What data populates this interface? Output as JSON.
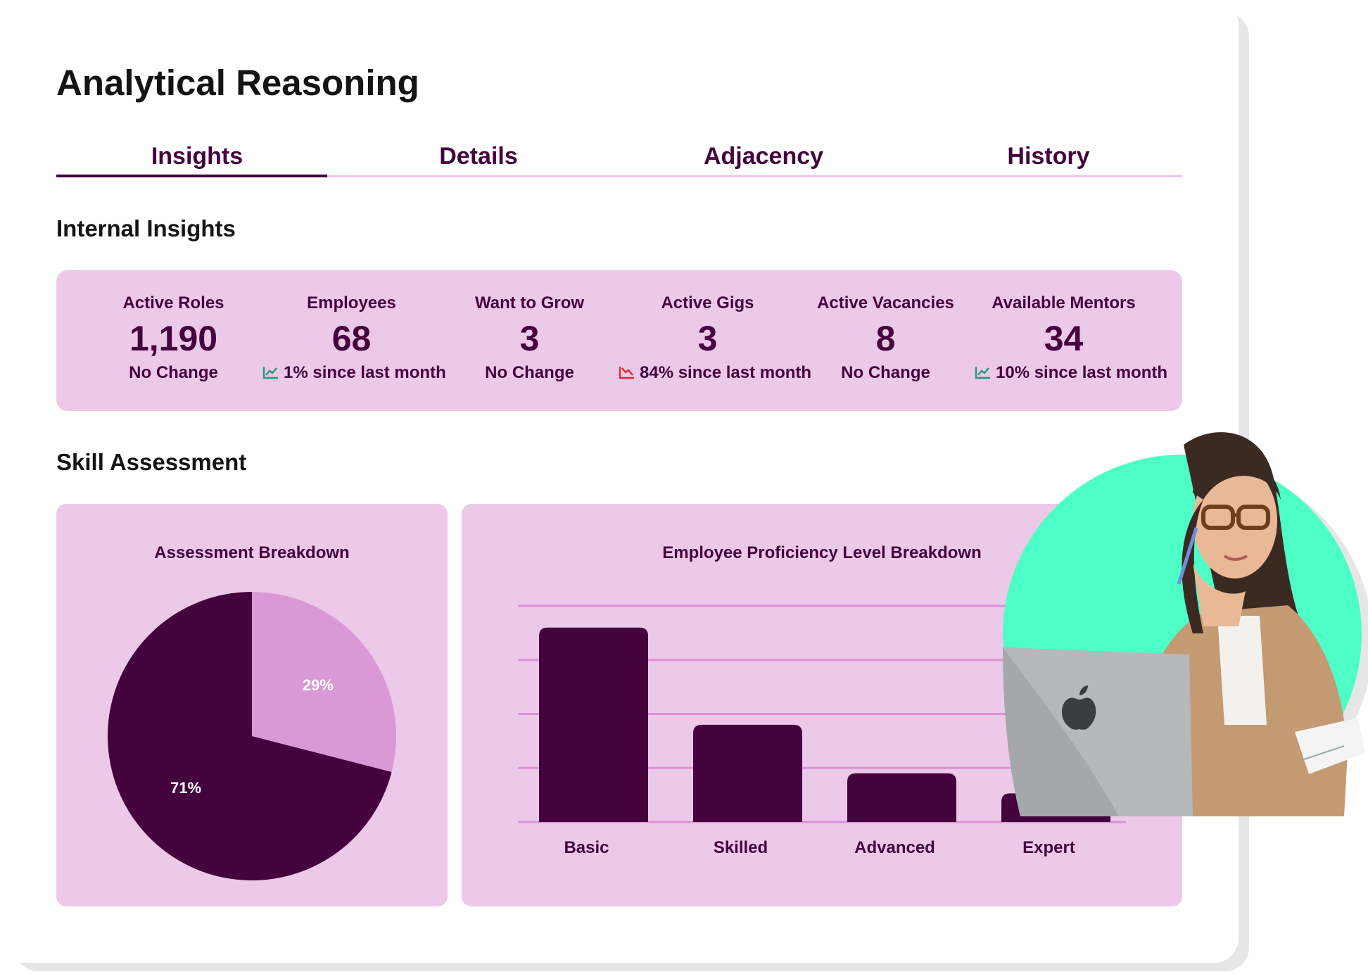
{
  "page": {
    "title": "Analytical Reasoning"
  },
  "tabs": [
    {
      "label": "Insights",
      "active": true
    },
    {
      "label": "Details",
      "active": false
    },
    {
      "label": "Adjacency",
      "active": false
    },
    {
      "label": "History",
      "active": false
    }
  ],
  "sections": {
    "internal": "Internal Insights",
    "skill": "Skill Assessment"
  },
  "kpis": [
    {
      "label": "Active Roles",
      "value": "1,190",
      "change": "No Change",
      "trend": "none"
    },
    {
      "label": "Employees",
      "value": "68",
      "change": "1% since last month",
      "trend": "up"
    },
    {
      "label": "Want to Grow",
      "value": "3",
      "change": "No Change",
      "trend": "none"
    },
    {
      "label": "Active Gigs",
      "value": "3",
      "change": "84% since last month",
      "trend": "down"
    },
    {
      "label": "Active Vacancies",
      "value": "8",
      "change": "No Change",
      "trend": "none"
    },
    {
      "label": "Available Mentors",
      "value": "34",
      "change": "10% since last month",
      "trend": "up"
    }
  ],
  "colors": {
    "primary": "#45033d",
    "panel": "#ecc9e8",
    "pie_light": "#db98d7",
    "gridline": "#dc8fd8",
    "trend_up": "#1e9a7b",
    "trend_down": "#e0253a",
    "photo_bg": "#4dfec6"
  },
  "chart_data": [
    {
      "type": "pie",
      "title": "Assessment Breakdown",
      "slices": [
        {
          "value": 29,
          "label": "29%",
          "color": "#db98d7"
        },
        {
          "value": 71,
          "label": "71%",
          "color": "#45033d"
        }
      ]
    },
    {
      "type": "bar",
      "title": "Employee Proficiency Level Breakdown",
      "categories": [
        "Basic",
        "Skilled",
        "Advanced",
        "Expert"
      ],
      "values": [
        36,
        18,
        9,
        5.3
      ],
      "ylim": [
        0,
        40
      ],
      "grid": true
    }
  ],
  "photo": {
    "description_icon": "person-photo"
  }
}
